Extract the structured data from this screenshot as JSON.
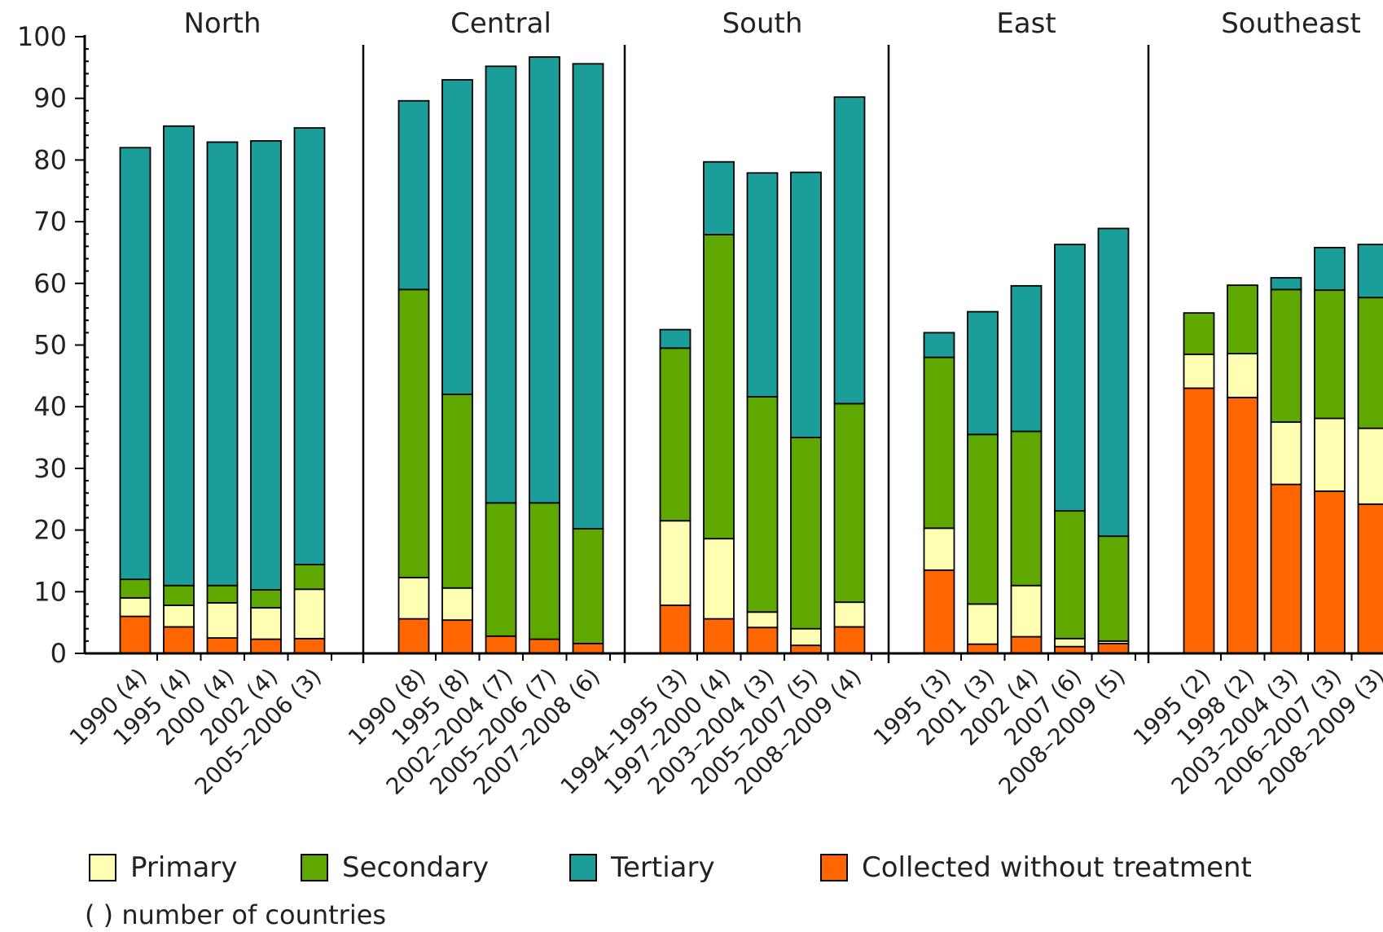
{
  "chart_data": {
    "type": "bar",
    "stacked": true,
    "ylim": [
      0,
      100
    ],
    "y_ticks": [
      "0",
      "10",
      "20",
      "30",
      "40",
      "50",
      "60",
      "70",
      "80",
      "90",
      "100"
    ],
    "grid": false,
    "legend_position": "bottom",
    "series_order": [
      "Collected without treatment",
      "Primary",
      "Secondary",
      "Tertiary"
    ],
    "series": [
      {
        "name": "Primary",
        "color": "#ffffb3"
      },
      {
        "name": "Secondary",
        "color": "#5fa800"
      },
      {
        "name": "Tertiary",
        "color": "#1b9e99"
      },
      {
        "name": "Collected without treatment",
        "color": "#ff6600"
      }
    ],
    "groups": [
      {
        "name": "North",
        "bars": [
          {
            "label": "1990 (4)",
            "values": {
              "Collected without treatment": 6,
              "Primary": 3,
              "Secondary": 3,
              "Tertiary": 70
            }
          },
          {
            "label": "1995 (4)",
            "values": {
              "Collected without treatment": 4.3,
              "Primary": 3.5,
              "Secondary": 3.2,
              "Tertiary": 74.5
            }
          },
          {
            "label": "2000 (4)",
            "values": {
              "Collected without treatment": 2.5,
              "Primary": 5.7,
              "Secondary": 2.8,
              "Tertiary": 71.9
            }
          },
          {
            "label": "2002 (4)",
            "values": {
              "Collected without treatment": 2.3,
              "Primary": 5.1,
              "Secondary": 2.9,
              "Tertiary": 72.8
            }
          },
          {
            "label": "2005–2006 (3)",
            "values": {
              "Collected without treatment": 2.4,
              "Primary": 8,
              "Secondary": 4,
              "Tertiary": 70.8
            }
          }
        ]
      },
      {
        "name": "Central",
        "bars": [
          {
            "label": "1990 (8)",
            "values": {
              "Collected without treatment": 5.6,
              "Primary": 6.7,
              "Secondary": 46.7,
              "Tertiary": 30.6
            }
          },
          {
            "label": "1995 (8)",
            "values": {
              "Collected without treatment": 5.4,
              "Primary": 5.2,
              "Secondary": 31.4,
              "Tertiary": 51
            }
          },
          {
            "label": "2002–2004 (7)",
            "values": {
              "Collected without treatment": 2.8,
              "Primary": 0,
              "Secondary": 21.6,
              "Tertiary": 70.8
            }
          },
          {
            "label": "2005–2006 (7)",
            "values": {
              "Collected without treatment": 2.3,
              "Primary": 0,
              "Secondary": 22.1,
              "Tertiary": 72.3
            }
          },
          {
            "label": "2007–2008 (6)",
            "values": {
              "Collected without treatment": 1.6,
              "Primary": 0,
              "Secondary": 18.6,
              "Tertiary": 75.4
            }
          }
        ]
      },
      {
        "name": "South",
        "bars": [
          {
            "label": "1994–1995 (3)",
            "values": {
              "Collected without treatment": 7.8,
              "Primary": 13.7,
              "Secondary": 28,
              "Tertiary": 3
            }
          },
          {
            "label": "1997–2000 (4)",
            "values": {
              "Collected without treatment": 5.6,
              "Primary": 13,
              "Secondary": 49.3,
              "Tertiary": 11.8
            }
          },
          {
            "label": "2003–2004 (3)",
            "values": {
              "Collected without treatment": 4.2,
              "Primary": 2.5,
              "Secondary": 34.9,
              "Tertiary": 36.3
            }
          },
          {
            "label": "2005–2007 (5)",
            "values": {
              "Collected without treatment": 1.3,
              "Primary": 2.7,
              "Secondary": 31,
              "Tertiary": 43
            }
          },
          {
            "label": "2008–2009 (4)",
            "values": {
              "Collected without treatment": 4.3,
              "Primary": 4,
              "Secondary": 32.2,
              "Tertiary": 49.7
            }
          }
        ]
      },
      {
        "name": "East",
        "bars": [
          {
            "label": "1995 (3)",
            "values": {
              "Collected without treatment": 13.5,
              "Primary": 6.8,
              "Secondary": 27.7,
              "Tertiary": 4
            }
          },
          {
            "label": "2001 (3)",
            "values": {
              "Collected without treatment": 1.5,
              "Primary": 6.5,
              "Secondary": 27.5,
              "Tertiary": 19.9
            }
          },
          {
            "label": "2002 (4)",
            "values": {
              "Collected without treatment": 2.7,
              "Primary": 8.3,
              "Secondary": 25,
              "Tertiary": 23.6
            }
          },
          {
            "label": "2007 (6)",
            "values": {
              "Collected without treatment": 1.1,
              "Primary": 1.3,
              "Secondary": 20.7,
              "Tertiary": 43.2
            }
          },
          {
            "label": "2008–2009 (5)",
            "values": {
              "Collected without treatment": 1.6,
              "Primary": 0.4,
              "Secondary": 17,
              "Tertiary": 49.9
            }
          }
        ]
      },
      {
        "name": "Southeast",
        "bars": [
          {
            "label": "1995 (2)",
            "values": {
              "Collected without treatment": 43,
              "Primary": 5.5,
              "Secondary": 6.7,
              "Tertiary": 0
            }
          },
          {
            "label": "1998 (2)",
            "values": {
              "Collected without treatment": 41.5,
              "Primary": 7.1,
              "Secondary": 11.1,
              "Tertiary": 0
            }
          },
          {
            "label": "2003–2004 (3)",
            "values": {
              "Collected without treatment": 27.4,
              "Primary": 10.1,
              "Secondary": 21.5,
              "Tertiary": 1.9
            }
          },
          {
            "label": "2006–2007 (3)",
            "values": {
              "Collected without treatment": 26.3,
              "Primary": 11.8,
              "Secondary": 20.8,
              "Tertiary": 6.9
            }
          },
          {
            "label": "2008–2009 (3)",
            "values": {
              "Collected without treatment": 24.2,
              "Primary": 12.3,
              "Secondary": 21.2,
              "Tertiary": 8.6
            }
          }
        ]
      }
    ],
    "note": "( ) number of countries"
  }
}
